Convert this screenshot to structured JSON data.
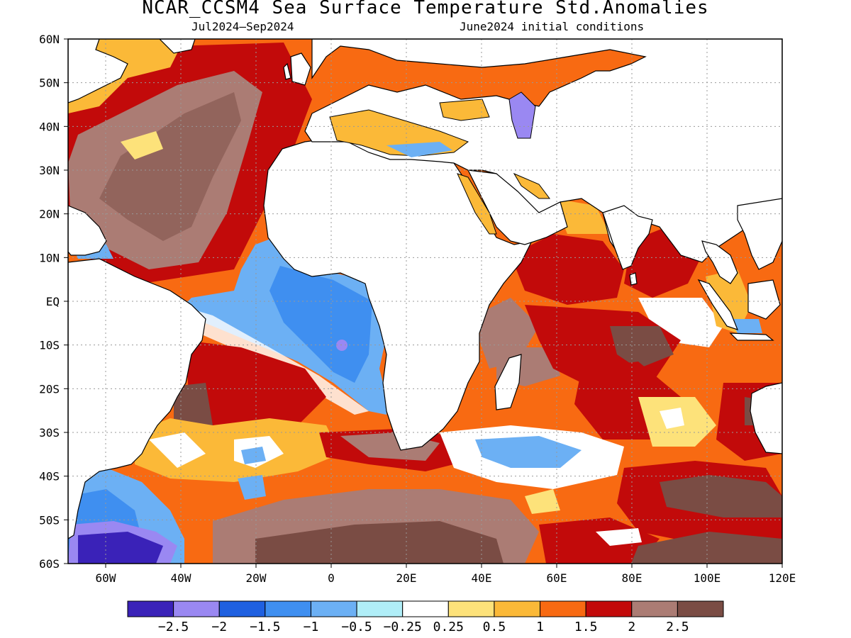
{
  "title": "NCAR_CCSM4 Sea Surface Temperature Std.Anomalies",
  "subtitle_period": "Jul2024–Sep2024",
  "subtitle_init": "June2024 initial conditions",
  "map": {
    "lon_range": [
      -70,
      120
    ],
    "lat_range": [
      -60,
      60
    ],
    "grid": "dotted",
    "x_ticks": [
      "60W",
      "40W",
      "20W",
      "0",
      "20E",
      "40E",
      "60E",
      "80E",
      "100E",
      "120E"
    ],
    "y_ticks": [
      "60N",
      "50N",
      "40N",
      "30N",
      "20N",
      "10N",
      "EQ",
      "10S",
      "20S",
      "30S",
      "40S",
      "50S",
      "60S"
    ]
  },
  "legend": {
    "colors": [
      "#3a22b8",
      "#9a88f2",
      "#1f60e0",
      "#3f8ff0",
      "#6cb0f4",
      "#b0eef8",
      "#ffffff",
      "#fde27a",
      "#fbb938",
      "#f86a12",
      "#c20a0a",
      "#ab7c74",
      "#7a4c44"
    ],
    "labels": [
      "−2.5",
      "−2",
      "−1.5",
      "−1",
      "−0.5",
      "−0.25",
      "0.25",
      "0.5",
      "1",
      "1.5",
      "2",
      "2.5"
    ]
  }
}
